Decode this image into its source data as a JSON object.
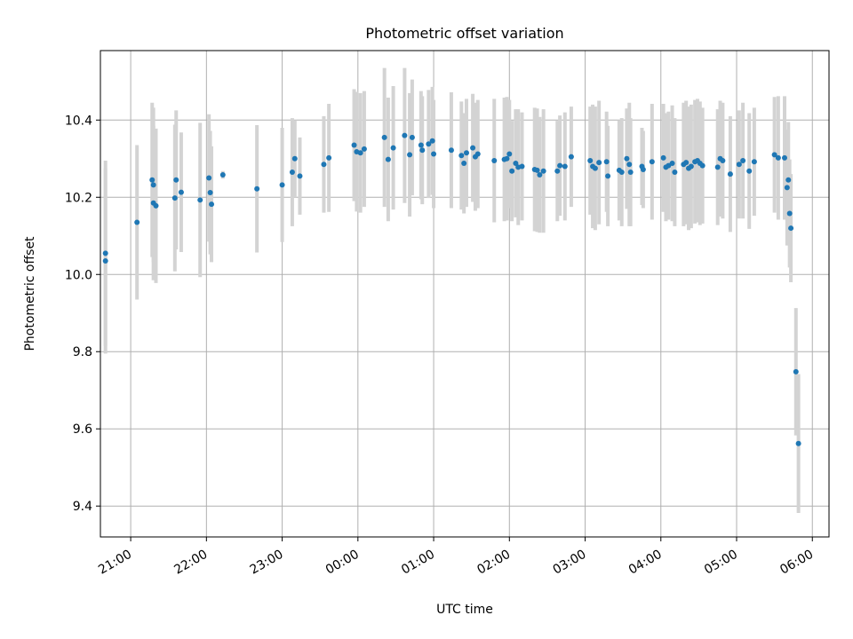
{
  "chart_data": {
    "type": "scatter",
    "title": "Photometric offset variation",
    "xlabel": "UTC time",
    "ylabel": "Photometric offset",
    "x_ticks": [
      "21:00",
      "22:00",
      "23:00",
      "00:00",
      "01:00",
      "02:00",
      "03:00",
      "04:00",
      "05:00",
      "06:00"
    ],
    "x_tick_hours": [
      21,
      22,
      23,
      24,
      25,
      26,
      27,
      28,
      29,
      30
    ],
    "y_ticks": [
      "9.4",
      "9.6",
      "9.8",
      "10.0",
      "10.2",
      "10.4"
    ],
    "y_tick_values": [
      9.4,
      9.6,
      9.8,
      10.0,
      10.2,
      10.4
    ],
    "xlim": [
      "20:36",
      "06:13"
    ],
    "xlim_hours": [
      20.6,
      30.22
    ],
    "ylim": [
      9.32,
      10.58
    ],
    "grid": true,
    "errorbar_color": "#d3d3d3",
    "marker_color": "#1f77b4",
    "points": [
      {
        "x": "20:40",
        "y": 10.055,
        "err": 0.24
      },
      {
        "x": "20:40",
        "y": 10.035,
        "err": 0.24
      },
      {
        "x": "21:05",
        "y": 10.135,
        "err": 0.2
      },
      {
        "x": "21:17",
        "y": 10.245,
        "err": 0.2
      },
      {
        "x": "21:18",
        "y": 10.232,
        "err": 0.2
      },
      {
        "x": "21:18",
        "y": 10.185,
        "err": 0.2
      },
      {
        "x": "21:20",
        "y": 10.178,
        "err": 0.2
      },
      {
        "x": "21:35",
        "y": 10.198,
        "err": 0.19
      },
      {
        "x": "21:36",
        "y": 10.245,
        "err": 0.18
      },
      {
        "x": "21:40",
        "y": 10.213,
        "err": 0.155
      },
      {
        "x": "21:55",
        "y": 10.193,
        "err": 0.2
      },
      {
        "x": "22:02",
        "y": 10.25,
        "err": 0.165
      },
      {
        "x": "22:03",
        "y": 10.212,
        "err": 0.16
      },
      {
        "x": "22:04",
        "y": 10.182,
        "err": 0.15
      },
      {
        "x": "22:13",
        "y": 10.258,
        "err": 0.01
      },
      {
        "x": "22:40",
        "y": 10.222,
        "err": 0.165
      },
      {
        "x": "23:00",
        "y": 10.232,
        "err": 0.148
      },
      {
        "x": "23:08",
        "y": 10.265,
        "err": 0.14
      },
      {
        "x": "23:10",
        "y": 10.3,
        "err": 0.1
      },
      {
        "x": "23:14",
        "y": 10.255,
        "err": 0.1
      },
      {
        "x": "23:33",
        "y": 10.285,
        "err": 0.125
      },
      {
        "x": "23:37",
        "y": 10.302,
        "err": 0.14
      },
      {
        "x": "23:57",
        "y": 10.335,
        "err": 0.145
      },
      {
        "x": "23:59",
        "y": 10.318,
        "err": 0.155
      },
      {
        "x": "00:02",
        "y": 10.315,
        "err": 0.155
      },
      {
        "x": "00:05",
        "y": 10.325,
        "err": 0.15
      },
      {
        "x": "00:21",
        "y": 10.355,
        "err": 0.18
      },
      {
        "x": "00:24",
        "y": 10.298,
        "err": 0.16
      },
      {
        "x": "00:28",
        "y": 10.328,
        "err": 0.16
      },
      {
        "x": "00:37",
        "y": 10.36,
        "err": 0.175
      },
      {
        "x": "00:41",
        "y": 10.31,
        "err": 0.16
      },
      {
        "x": "00:43",
        "y": 10.355,
        "err": 0.15
      },
      {
        "x": "00:50",
        "y": 10.335,
        "err": 0.14
      },
      {
        "x": "00:51",
        "y": 10.322,
        "err": 0.14
      },
      {
        "x": "00:56",
        "y": 10.338,
        "err": 0.14
      },
      {
        "x": "00:59",
        "y": 10.346,
        "err": 0.14
      },
      {
        "x": "01:00",
        "y": 10.312,
        "err": 0.14
      },
      {
        "x": "01:14",
        "y": 10.322,
        "err": 0.15
      },
      {
        "x": "01:22",
        "y": 10.308,
        "err": 0.14
      },
      {
        "x": "01:24",
        "y": 10.288,
        "err": 0.13
      },
      {
        "x": "01:26",
        "y": 10.315,
        "err": 0.14
      },
      {
        "x": "01:31",
        "y": 10.328,
        "err": 0.14
      },
      {
        "x": "01:33",
        "y": 10.305,
        "err": 0.14
      },
      {
        "x": "01:35",
        "y": 10.312,
        "err": 0.14
      },
      {
        "x": "01:48",
        "y": 10.295,
        "err": 0.16
      },
      {
        "x": "01:56",
        "y": 10.298,
        "err": 0.16
      },
      {
        "x": "01:58",
        "y": 10.3,
        "err": 0.16
      },
      {
        "x": "02:00",
        "y": 10.312,
        "err": 0.14
      },
      {
        "x": "02:02",
        "y": 10.268,
        "err": 0.13
      },
      {
        "x": "02:05",
        "y": 10.288,
        "err": 0.14
      },
      {
        "x": "02:07",
        "y": 10.278,
        "err": 0.15
      },
      {
        "x": "02:10",
        "y": 10.28,
        "err": 0.14
      },
      {
        "x": "02:20",
        "y": 10.272,
        "err": 0.16
      },
      {
        "x": "02:22",
        "y": 10.27,
        "err": 0.16
      },
      {
        "x": "02:24",
        "y": 10.258,
        "err": 0.15
      },
      {
        "x": "02:27",
        "y": 10.268,
        "err": 0.16
      },
      {
        "x": "02:38",
        "y": 10.268,
        "err": 0.13
      },
      {
        "x": "02:40",
        "y": 10.282,
        "err": 0.13
      },
      {
        "x": "02:44",
        "y": 10.28,
        "err": 0.14
      },
      {
        "x": "02:49",
        "y": 10.305,
        "err": 0.13
      },
      {
        "x": "03:04",
        "y": 10.295,
        "err": 0.14
      },
      {
        "x": "03:06",
        "y": 10.28,
        "err": 0.16
      },
      {
        "x": "03:08",
        "y": 10.275,
        "err": 0.16
      },
      {
        "x": "03:11",
        "y": 10.29,
        "err": 0.16
      },
      {
        "x": "03:18",
        "y": 10.255,
        "err": 0.13
      },
      {
        "x": "03:17",
        "y": 10.292,
        "err": 0.13
      },
      {
        "x": "03:27",
        "y": 10.27,
        "err": 0.13
      },
      {
        "x": "03:29",
        "y": 10.265,
        "err": 0.14
      },
      {
        "x": "03:33",
        "y": 10.3,
        "err": 0.13
      },
      {
        "x": "03:35",
        "y": 10.285,
        "err": 0.16
      },
      {
        "x": "03:36",
        "y": 10.265,
        "err": 0.14
      },
      {
        "x": "03:45",
        "y": 10.28,
        "err": 0.1
      },
      {
        "x": "03:46",
        "y": 10.272,
        "err": 0.1
      },
      {
        "x": "03:53",
        "y": 10.292,
        "err": 0.15
      },
      {
        "x": "04:02",
        "y": 10.302,
        "err": 0.14
      },
      {
        "x": "04:04",
        "y": 10.278,
        "err": 0.14
      },
      {
        "x": "04:06",
        "y": 10.282,
        "err": 0.14
      },
      {
        "x": "04:09",
        "y": 10.288,
        "err": 0.15
      },
      {
        "x": "04:11",
        "y": 10.265,
        "err": 0.14
      },
      {
        "x": "04:18",
        "y": 10.285,
        "err": 0.16
      },
      {
        "x": "04:20",
        "y": 10.29,
        "err": 0.16
      },
      {
        "x": "04:22",
        "y": 10.275,
        "err": 0.16
      },
      {
        "x": "04:24",
        "y": 10.28,
        "err": 0.16
      },
      {
        "x": "04:27",
        "y": 10.292,
        "err": 0.16
      },
      {
        "x": "04:29",
        "y": 10.295,
        "err": 0.16
      },
      {
        "x": "04:31",
        "y": 10.288,
        "err": 0.16
      },
      {
        "x": "04:33",
        "y": 10.282,
        "err": 0.15
      },
      {
        "x": "04:45",
        "y": 10.278,
        "err": 0.15
      },
      {
        "x": "04:47",
        "y": 10.3,
        "err": 0.15
      },
      {
        "x": "04:49",
        "y": 10.295,
        "err": 0.15
      },
      {
        "x": "04:55",
        "y": 10.26,
        "err": 0.15
      },
      {
        "x": "05:02",
        "y": 10.285,
        "err": 0.14
      },
      {
        "x": "05:05",
        "y": 10.295,
        "err": 0.15
      },
      {
        "x": "05:10",
        "y": 10.268,
        "err": 0.15
      },
      {
        "x": "05:14",
        "y": 10.292,
        "err": 0.14
      },
      {
        "x": "05:30",
        "y": 10.31,
        "err": 0.15
      },
      {
        "x": "05:33",
        "y": 10.302,
        "err": 0.16
      },
      {
        "x": "05:38",
        "y": 10.302,
        "err": 0.16
      },
      {
        "x": "05:40",
        "y": 10.225,
        "err": 0.15
      },
      {
        "x": "05:41",
        "y": 10.245,
        "err": 0.15
      },
      {
        "x": "05:42",
        "y": 10.158,
        "err": 0.14
      },
      {
        "x": "05:43",
        "y": 10.12,
        "err": 0.14
      },
      {
        "x": "05:47",
        "y": 9.748,
        "err": 0.165
      },
      {
        "x": "05:49",
        "y": 9.562,
        "err": 0.18
      }
    ]
  }
}
